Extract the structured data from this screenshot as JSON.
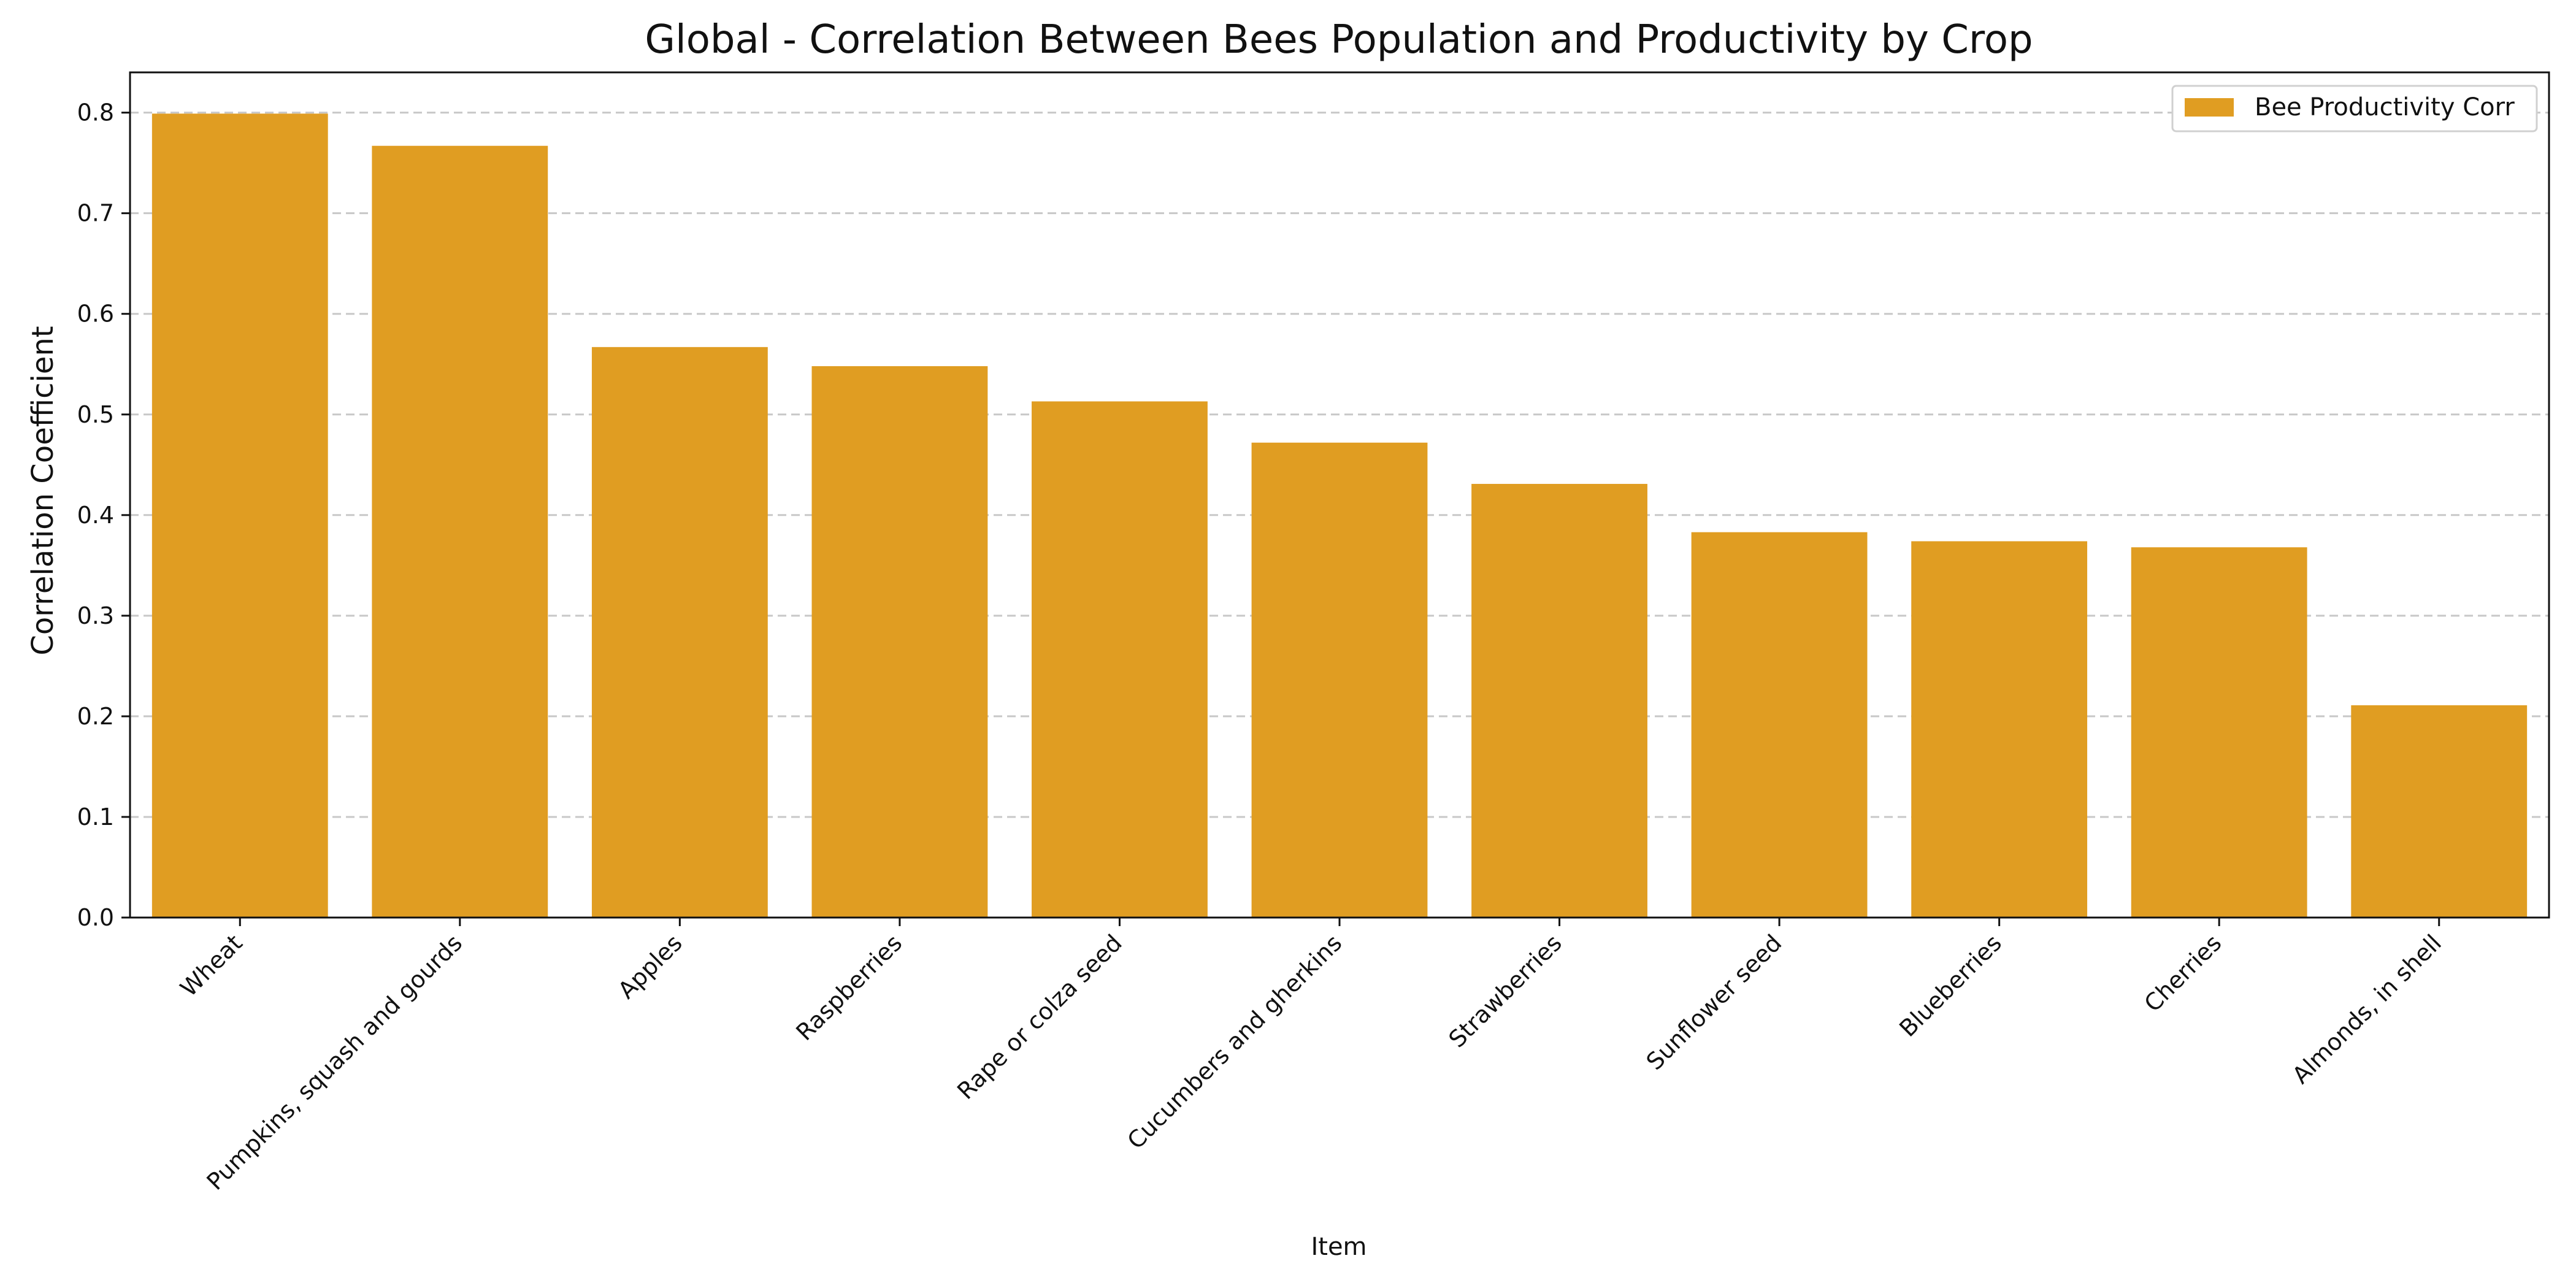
{
  "chart_data": {
    "type": "bar",
    "title": "Global - Correlation Between Bees Population and Productivity by Crop",
    "xlabel": "Item",
    "ylabel": "Correlation Coefficient",
    "categories": [
      "Wheat",
      "Pumpkins, squash and gourds",
      "Apples",
      "Raspberries",
      "Rape or colza seed",
      "Cucumbers and gherkins",
      "Strawberries",
      "Sunflower seed",
      "Blueberries",
      "Cherries",
      "Almonds, in shell"
    ],
    "series": [
      {
        "name": "Bee Productivity Corr",
        "values": [
          0.799,
          0.767,
          0.567,
          0.548,
          0.513,
          0.472,
          0.431,
          0.383,
          0.374,
          0.368,
          0.211
        ]
      }
    ],
    "ylim": [
      0,
      0.84
    ],
    "yticks": [
      0.0,
      0.1,
      0.2,
      0.3,
      0.4,
      0.5,
      0.6,
      0.7,
      0.8
    ],
    "ytick_labels": [
      "0.0",
      "0.1",
      "0.2",
      "0.3",
      "0.4",
      "0.5",
      "0.6",
      "0.7",
      "0.8"
    ],
    "grid": "y-dashed",
    "legend_position": "top-right",
    "bar_color": "#E09D22",
    "grid_color": "#C8C8C8"
  }
}
